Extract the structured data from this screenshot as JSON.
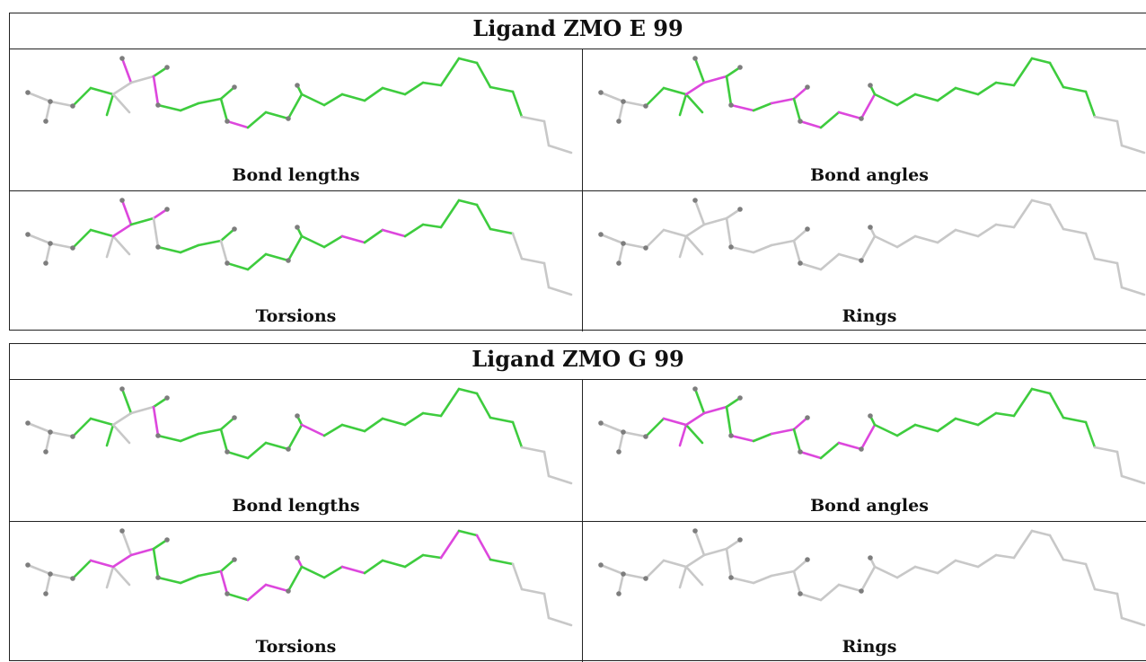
{
  "colors": {
    "ok": "#3ecc3e",
    "outlier": "#dd47dd",
    "neutral": "#c8c8c8",
    "atom": "#7d7d7d"
  },
  "blocks": [
    {
      "title": "Ligand ZMO E 99",
      "panels": [
        {
          "label": "Bond lengths",
          "bond_colors": "nnnGGGnnMnGMGGGGGMGGGGGGGGGGGGGGGG"
        },
        {
          "label": "Bond angles",
          "bond_colors": "nnnGGGGMGMGGMGMMGMGMMGGGGGGGGGGGGG"
        },
        {
          "label": "Torsions",
          "bond_colors": "nnnGGnnMMGMnGGGGnGGGGGGGMGMGGGGGGn"
        },
        {
          "label": "Rings",
          "bond_colors": "nnnnnnnnnnnnnnnnnnnnnnnnnnnnnnnnnn"
        }
      ]
    },
    {
      "title": "Ligand ZMO G 99",
      "panels": [
        {
          "label": "Bond lengths",
          "bond_colors": "nnnGGGnnGnGMGGGGGGGGGGMGGGGGGGGGGG"
        },
        {
          "label": "Bond angles",
          "bond_colors": "nnnGMMGMGMGGMGMMGMGMMGGGGGGGGGGGGG"
        },
        {
          "label": "Torsions",
          "bond_colors": "nnnGMnnMnMGGGGGGMGMMGMGGMGGGGMGMGn"
        },
        {
          "label": "Rings",
          "bond_colors": "nnnnnnnnnnnnnnnnnnnnnnnnnnnnnnnnnn"
        }
      ]
    }
  ]
}
